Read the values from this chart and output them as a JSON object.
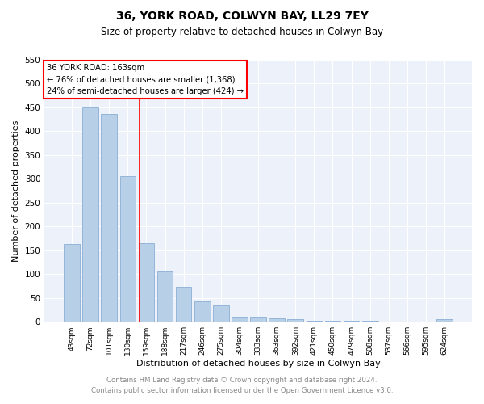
{
  "title": "36, YORK ROAD, COLWYN BAY, LL29 7EY",
  "subtitle": "Size of property relative to detached houses in Colwyn Bay",
  "xlabel": "Distribution of detached houses by size in Colwyn Bay",
  "ylabel": "Number of detached properties",
  "categories": [
    "43sqm",
    "72sqm",
    "101sqm",
    "130sqm",
    "159sqm",
    "188sqm",
    "217sqm",
    "246sqm",
    "275sqm",
    "304sqm",
    "333sqm",
    "363sqm",
    "392sqm",
    "421sqm",
    "450sqm",
    "479sqm",
    "508sqm",
    "537sqm",
    "566sqm",
    "595sqm",
    "624sqm"
  ],
  "values": [
    163,
    450,
    436,
    306,
    165,
    106,
    74,
    43,
    35,
    10,
    10,
    7,
    5,
    2,
    2,
    2,
    2,
    1,
    1,
    1,
    5
  ],
  "bar_color": "#b8cfe8",
  "bar_edge_color": "#8aafd4",
  "reference_line_label": "36 YORK ROAD: 163sqm",
  "annotation_line1": "← 76% of detached houses are smaller (1,368)",
  "annotation_line2": "24% of semi-detached houses are larger (424) →",
  "ylim": [
    0,
    550
  ],
  "yticks": [
    0,
    50,
    100,
    150,
    200,
    250,
    300,
    350,
    400,
    450,
    500,
    550
  ],
  "footer_line1": "Contains HM Land Registry data © Crown copyright and database right 2024.",
  "footer_line2": "Contains public sector information licensed under the Open Government Licence v3.0.",
  "plot_bg_color": "#edf1fa",
  "grid_color": "#ffffff",
  "ref_line_x": 3.63
}
